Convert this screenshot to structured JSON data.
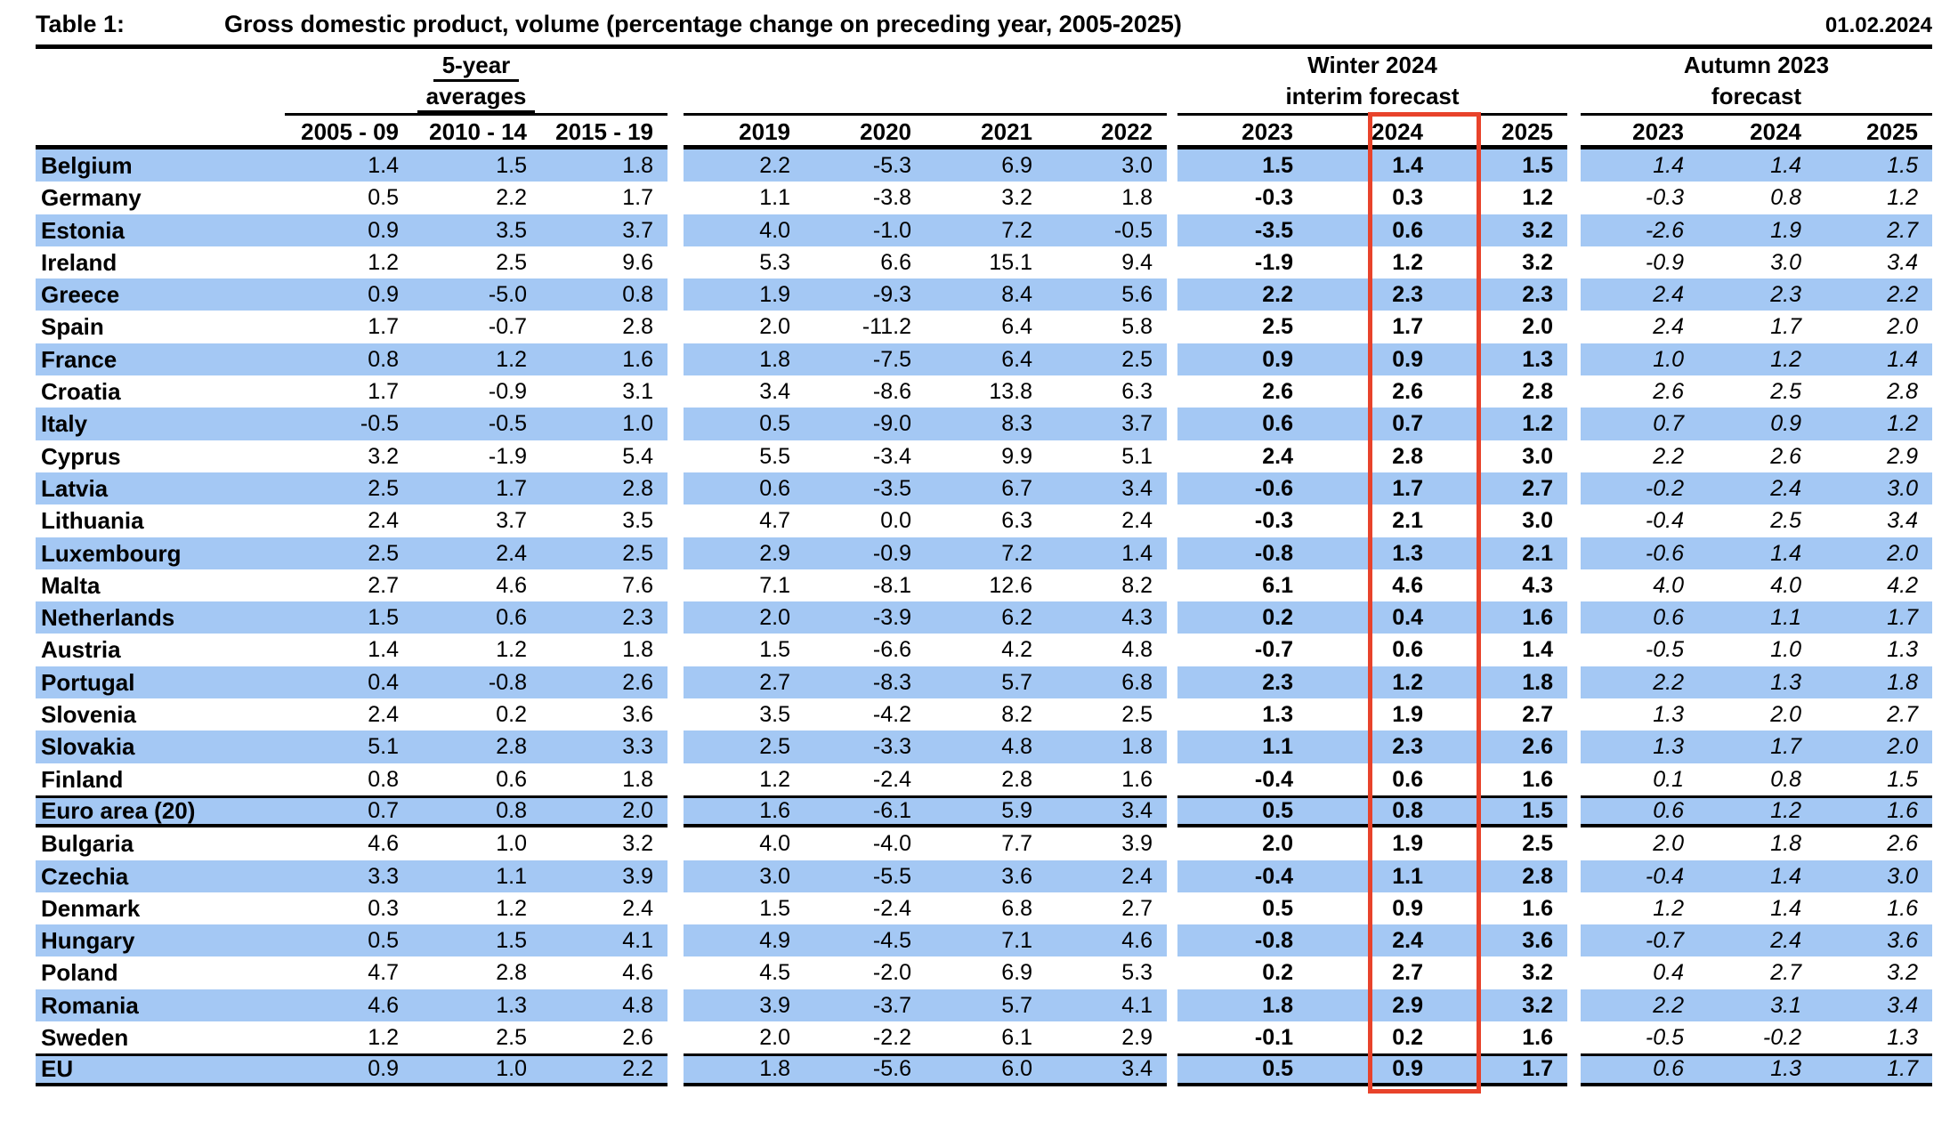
{
  "header": {
    "table_label": "Table 1:",
    "title": "Gross domestic product, volume (percentage change on preceding year, 2005-2025)",
    "date": "01.02.2024"
  },
  "column_groups": {
    "averages": [
      "5-year",
      "averages"
    ],
    "winter": [
      "Winter 2024",
      "interim forecast"
    ],
    "autumn": [
      "Autumn 2023",
      "forecast"
    ]
  },
  "columns": {
    "averages": [
      "2005 - 09",
      "2010 - 14",
      "2015 - 19"
    ],
    "years": [
      "2019",
      "2020",
      "2021",
      "2022"
    ],
    "winter": [
      "2023",
      "2024",
      "2025"
    ],
    "autumn": [
      "2023",
      "2024",
      "2025"
    ]
  },
  "highlight": {
    "column": "Winter 2024 forecast, 2024",
    "box_color": "#E8432B"
  },
  "colors": {
    "row_highlight": "#A4C8F4",
    "highlight_box_border": "#E8432B",
    "line": "#000000"
  },
  "rows": [
    {
      "country": "Belgium",
      "avg": [
        "1.4",
        "1.5",
        "1.8"
      ],
      "years": [
        "2.2",
        "-5.3",
        "6.9",
        "3.0"
      ],
      "winter": [
        "1.5",
        "1.4",
        "1.5"
      ],
      "autumn": [
        "1.4",
        "1.4",
        "1.5"
      ]
    },
    {
      "country": "Germany",
      "avg": [
        "0.5",
        "2.2",
        "1.7"
      ],
      "years": [
        "1.1",
        "-3.8",
        "3.2",
        "1.8"
      ],
      "winter": [
        "-0.3",
        "0.3",
        "1.2"
      ],
      "autumn": [
        "-0.3",
        "0.8",
        "1.2"
      ]
    },
    {
      "country": "Estonia",
      "avg": [
        "0.9",
        "3.5",
        "3.7"
      ],
      "years": [
        "4.0",
        "-1.0",
        "7.2",
        "-0.5"
      ],
      "winter": [
        "-3.5",
        "0.6",
        "3.2"
      ],
      "autumn": [
        "-2.6",
        "1.9",
        "2.7"
      ]
    },
    {
      "country": "Ireland",
      "avg": [
        "1.2",
        "2.5",
        "9.6"
      ],
      "years": [
        "5.3",
        "6.6",
        "15.1",
        "9.4"
      ],
      "winter": [
        "-1.9",
        "1.2",
        "3.2"
      ],
      "autumn": [
        "-0.9",
        "3.0",
        "3.4"
      ]
    },
    {
      "country": "Greece",
      "avg": [
        "0.9",
        "-5.0",
        "0.8"
      ],
      "years": [
        "1.9",
        "-9.3",
        "8.4",
        "5.6"
      ],
      "winter": [
        "2.2",
        "2.3",
        "2.3"
      ],
      "autumn": [
        "2.4",
        "2.3",
        "2.2"
      ]
    },
    {
      "country": "Spain",
      "avg": [
        "1.7",
        "-0.7",
        "2.8"
      ],
      "years": [
        "2.0",
        "-11.2",
        "6.4",
        "5.8"
      ],
      "winter": [
        "2.5",
        "1.7",
        "2.0"
      ],
      "autumn": [
        "2.4",
        "1.7",
        "2.0"
      ]
    },
    {
      "country": "France",
      "avg": [
        "0.8",
        "1.2",
        "1.6"
      ],
      "years": [
        "1.8",
        "-7.5",
        "6.4",
        "2.5"
      ],
      "winter": [
        "0.9",
        "0.9",
        "1.3"
      ],
      "autumn": [
        "1.0",
        "1.2",
        "1.4"
      ]
    },
    {
      "country": "Croatia",
      "avg": [
        "1.7",
        "-0.9",
        "3.1"
      ],
      "years": [
        "3.4",
        "-8.6",
        "13.8",
        "6.3"
      ],
      "winter": [
        "2.6",
        "2.6",
        "2.8"
      ],
      "autumn": [
        "2.6",
        "2.5",
        "2.8"
      ]
    },
    {
      "country": "Italy",
      "avg": [
        "-0.5",
        "-0.5",
        "1.0"
      ],
      "years": [
        "0.5",
        "-9.0",
        "8.3",
        "3.7"
      ],
      "winter": [
        "0.6",
        "0.7",
        "1.2"
      ],
      "autumn": [
        "0.7",
        "0.9",
        "1.2"
      ]
    },
    {
      "country": "Cyprus",
      "avg": [
        "3.2",
        "-1.9",
        "5.4"
      ],
      "years": [
        "5.5",
        "-3.4",
        "9.9",
        "5.1"
      ],
      "winter": [
        "2.4",
        "2.8",
        "3.0"
      ],
      "autumn": [
        "2.2",
        "2.6",
        "2.9"
      ]
    },
    {
      "country": "Latvia",
      "avg": [
        "2.5",
        "1.7",
        "2.8"
      ],
      "years": [
        "0.6",
        "-3.5",
        "6.7",
        "3.4"
      ],
      "winter": [
        "-0.6",
        "1.7",
        "2.7"
      ],
      "autumn": [
        "-0.2",
        "2.4",
        "3.0"
      ]
    },
    {
      "country": "Lithuania",
      "avg": [
        "2.4",
        "3.7",
        "3.5"
      ],
      "years": [
        "4.7",
        "0.0",
        "6.3",
        "2.4"
      ],
      "winter": [
        "-0.3",
        "2.1",
        "3.0"
      ],
      "autumn": [
        "-0.4",
        "2.5",
        "3.4"
      ]
    },
    {
      "country": "Luxembourg",
      "avg": [
        "2.5",
        "2.4",
        "2.5"
      ],
      "years": [
        "2.9",
        "-0.9",
        "7.2",
        "1.4"
      ],
      "winter": [
        "-0.8",
        "1.3",
        "2.1"
      ],
      "autumn": [
        "-0.6",
        "1.4",
        "2.0"
      ]
    },
    {
      "country": "Malta",
      "avg": [
        "2.7",
        "4.6",
        "7.6"
      ],
      "years": [
        "7.1",
        "-8.1",
        "12.6",
        "8.2"
      ],
      "winter": [
        "6.1",
        "4.6",
        "4.3"
      ],
      "autumn": [
        "4.0",
        "4.0",
        "4.2"
      ]
    },
    {
      "country": "Netherlands",
      "avg": [
        "1.5",
        "0.6",
        "2.3"
      ],
      "years": [
        "2.0",
        "-3.9",
        "6.2",
        "4.3"
      ],
      "winter": [
        "0.2",
        "0.4",
        "1.6"
      ],
      "autumn": [
        "0.6",
        "1.1",
        "1.7"
      ]
    },
    {
      "country": "Austria",
      "avg": [
        "1.4",
        "1.2",
        "1.8"
      ],
      "years": [
        "1.5",
        "-6.6",
        "4.2",
        "4.8"
      ],
      "winter": [
        "-0.7",
        "0.6",
        "1.4"
      ],
      "autumn": [
        "-0.5",
        "1.0",
        "1.3"
      ]
    },
    {
      "country": "Portugal",
      "avg": [
        "0.4",
        "-0.8",
        "2.6"
      ],
      "years": [
        "2.7",
        "-8.3",
        "5.7",
        "6.8"
      ],
      "winter": [
        "2.3",
        "1.2",
        "1.8"
      ],
      "autumn": [
        "2.2",
        "1.3",
        "1.8"
      ]
    },
    {
      "country": "Slovenia",
      "avg": [
        "2.4",
        "0.2",
        "3.6"
      ],
      "years": [
        "3.5",
        "-4.2",
        "8.2",
        "2.5"
      ],
      "winter": [
        "1.3",
        "1.9",
        "2.7"
      ],
      "autumn": [
        "1.3",
        "2.0",
        "2.7"
      ]
    },
    {
      "country": "Slovakia",
      "avg": [
        "5.1",
        "2.8",
        "3.3"
      ],
      "years": [
        "2.5",
        "-3.3",
        "4.8",
        "1.8"
      ],
      "winter": [
        "1.1",
        "2.3",
        "2.6"
      ],
      "autumn": [
        "1.3",
        "1.7",
        "2.0"
      ]
    },
    {
      "country": "Finland",
      "avg": [
        "0.8",
        "0.6",
        "1.8"
      ],
      "years": [
        "1.2",
        "-2.4",
        "2.8",
        "1.6"
      ],
      "winter": [
        "-0.4",
        "0.6",
        "1.6"
      ],
      "autumn": [
        "0.1",
        "0.8",
        "1.5"
      ]
    },
    {
      "country": "Euro area (20)",
      "avg": [
        "0.7",
        "0.8",
        "2.0"
      ],
      "years": [
        "1.6",
        "-6.1",
        "5.9",
        "3.4"
      ],
      "winter": [
        "0.5",
        "0.8",
        "1.5"
      ],
      "autumn": [
        "0.6",
        "1.2",
        "1.6"
      ],
      "separator": true
    },
    {
      "country": "Bulgaria",
      "avg": [
        "4.6",
        "1.0",
        "3.2"
      ],
      "years": [
        "4.0",
        "-4.0",
        "7.7",
        "3.9"
      ],
      "winter": [
        "2.0",
        "1.9",
        "2.5"
      ],
      "autumn": [
        "2.0",
        "1.8",
        "2.6"
      ]
    },
    {
      "country": "Czechia",
      "avg": [
        "3.3",
        "1.1",
        "3.9"
      ],
      "years": [
        "3.0",
        "-5.5",
        "3.6",
        "2.4"
      ],
      "winter": [
        "-0.4",
        "1.1",
        "2.8"
      ],
      "autumn": [
        "-0.4",
        "1.4",
        "3.0"
      ]
    },
    {
      "country": "Denmark",
      "avg": [
        "0.3",
        "1.2",
        "2.4"
      ],
      "years": [
        "1.5",
        "-2.4",
        "6.8",
        "2.7"
      ],
      "winter": [
        "0.5",
        "0.9",
        "1.6"
      ],
      "autumn": [
        "1.2",
        "1.4",
        "1.6"
      ]
    },
    {
      "country": "Hungary",
      "avg": [
        "0.5",
        "1.5",
        "4.1"
      ],
      "years": [
        "4.9",
        "-4.5",
        "7.1",
        "4.6"
      ],
      "winter": [
        "-0.8",
        "2.4",
        "3.6"
      ],
      "autumn": [
        "-0.7",
        "2.4",
        "3.6"
      ]
    },
    {
      "country": "Poland",
      "avg": [
        "4.7",
        "2.8",
        "4.6"
      ],
      "years": [
        "4.5",
        "-2.0",
        "6.9",
        "5.3"
      ],
      "winter": [
        "0.2",
        "2.7",
        "3.2"
      ],
      "autumn": [
        "0.4",
        "2.7",
        "3.2"
      ]
    },
    {
      "country": "Romania",
      "avg": [
        "4.6",
        "1.3",
        "4.8"
      ],
      "years": [
        "3.9",
        "-3.7",
        "5.7",
        "4.1"
      ],
      "winter": [
        "1.8",
        "2.9",
        "3.2"
      ],
      "autumn": [
        "2.2",
        "3.1",
        "3.4"
      ]
    },
    {
      "country": "Sweden",
      "avg": [
        "1.2",
        "2.5",
        "2.6"
      ],
      "years": [
        "2.0",
        "-2.2",
        "6.1",
        "2.9"
      ],
      "winter": [
        "-0.1",
        "0.2",
        "1.6"
      ],
      "autumn": [
        "-0.5",
        "-0.2",
        "1.3"
      ]
    },
    {
      "country": "EU",
      "avg": [
        "0.9",
        "1.0",
        "2.2"
      ],
      "years": [
        "1.8",
        "-5.6",
        "6.0",
        "3.4"
      ],
      "winter": [
        "0.5",
        "0.9",
        "1.7"
      ],
      "autumn": [
        "0.6",
        "1.3",
        "1.7"
      ],
      "separator": true
    }
  ]
}
